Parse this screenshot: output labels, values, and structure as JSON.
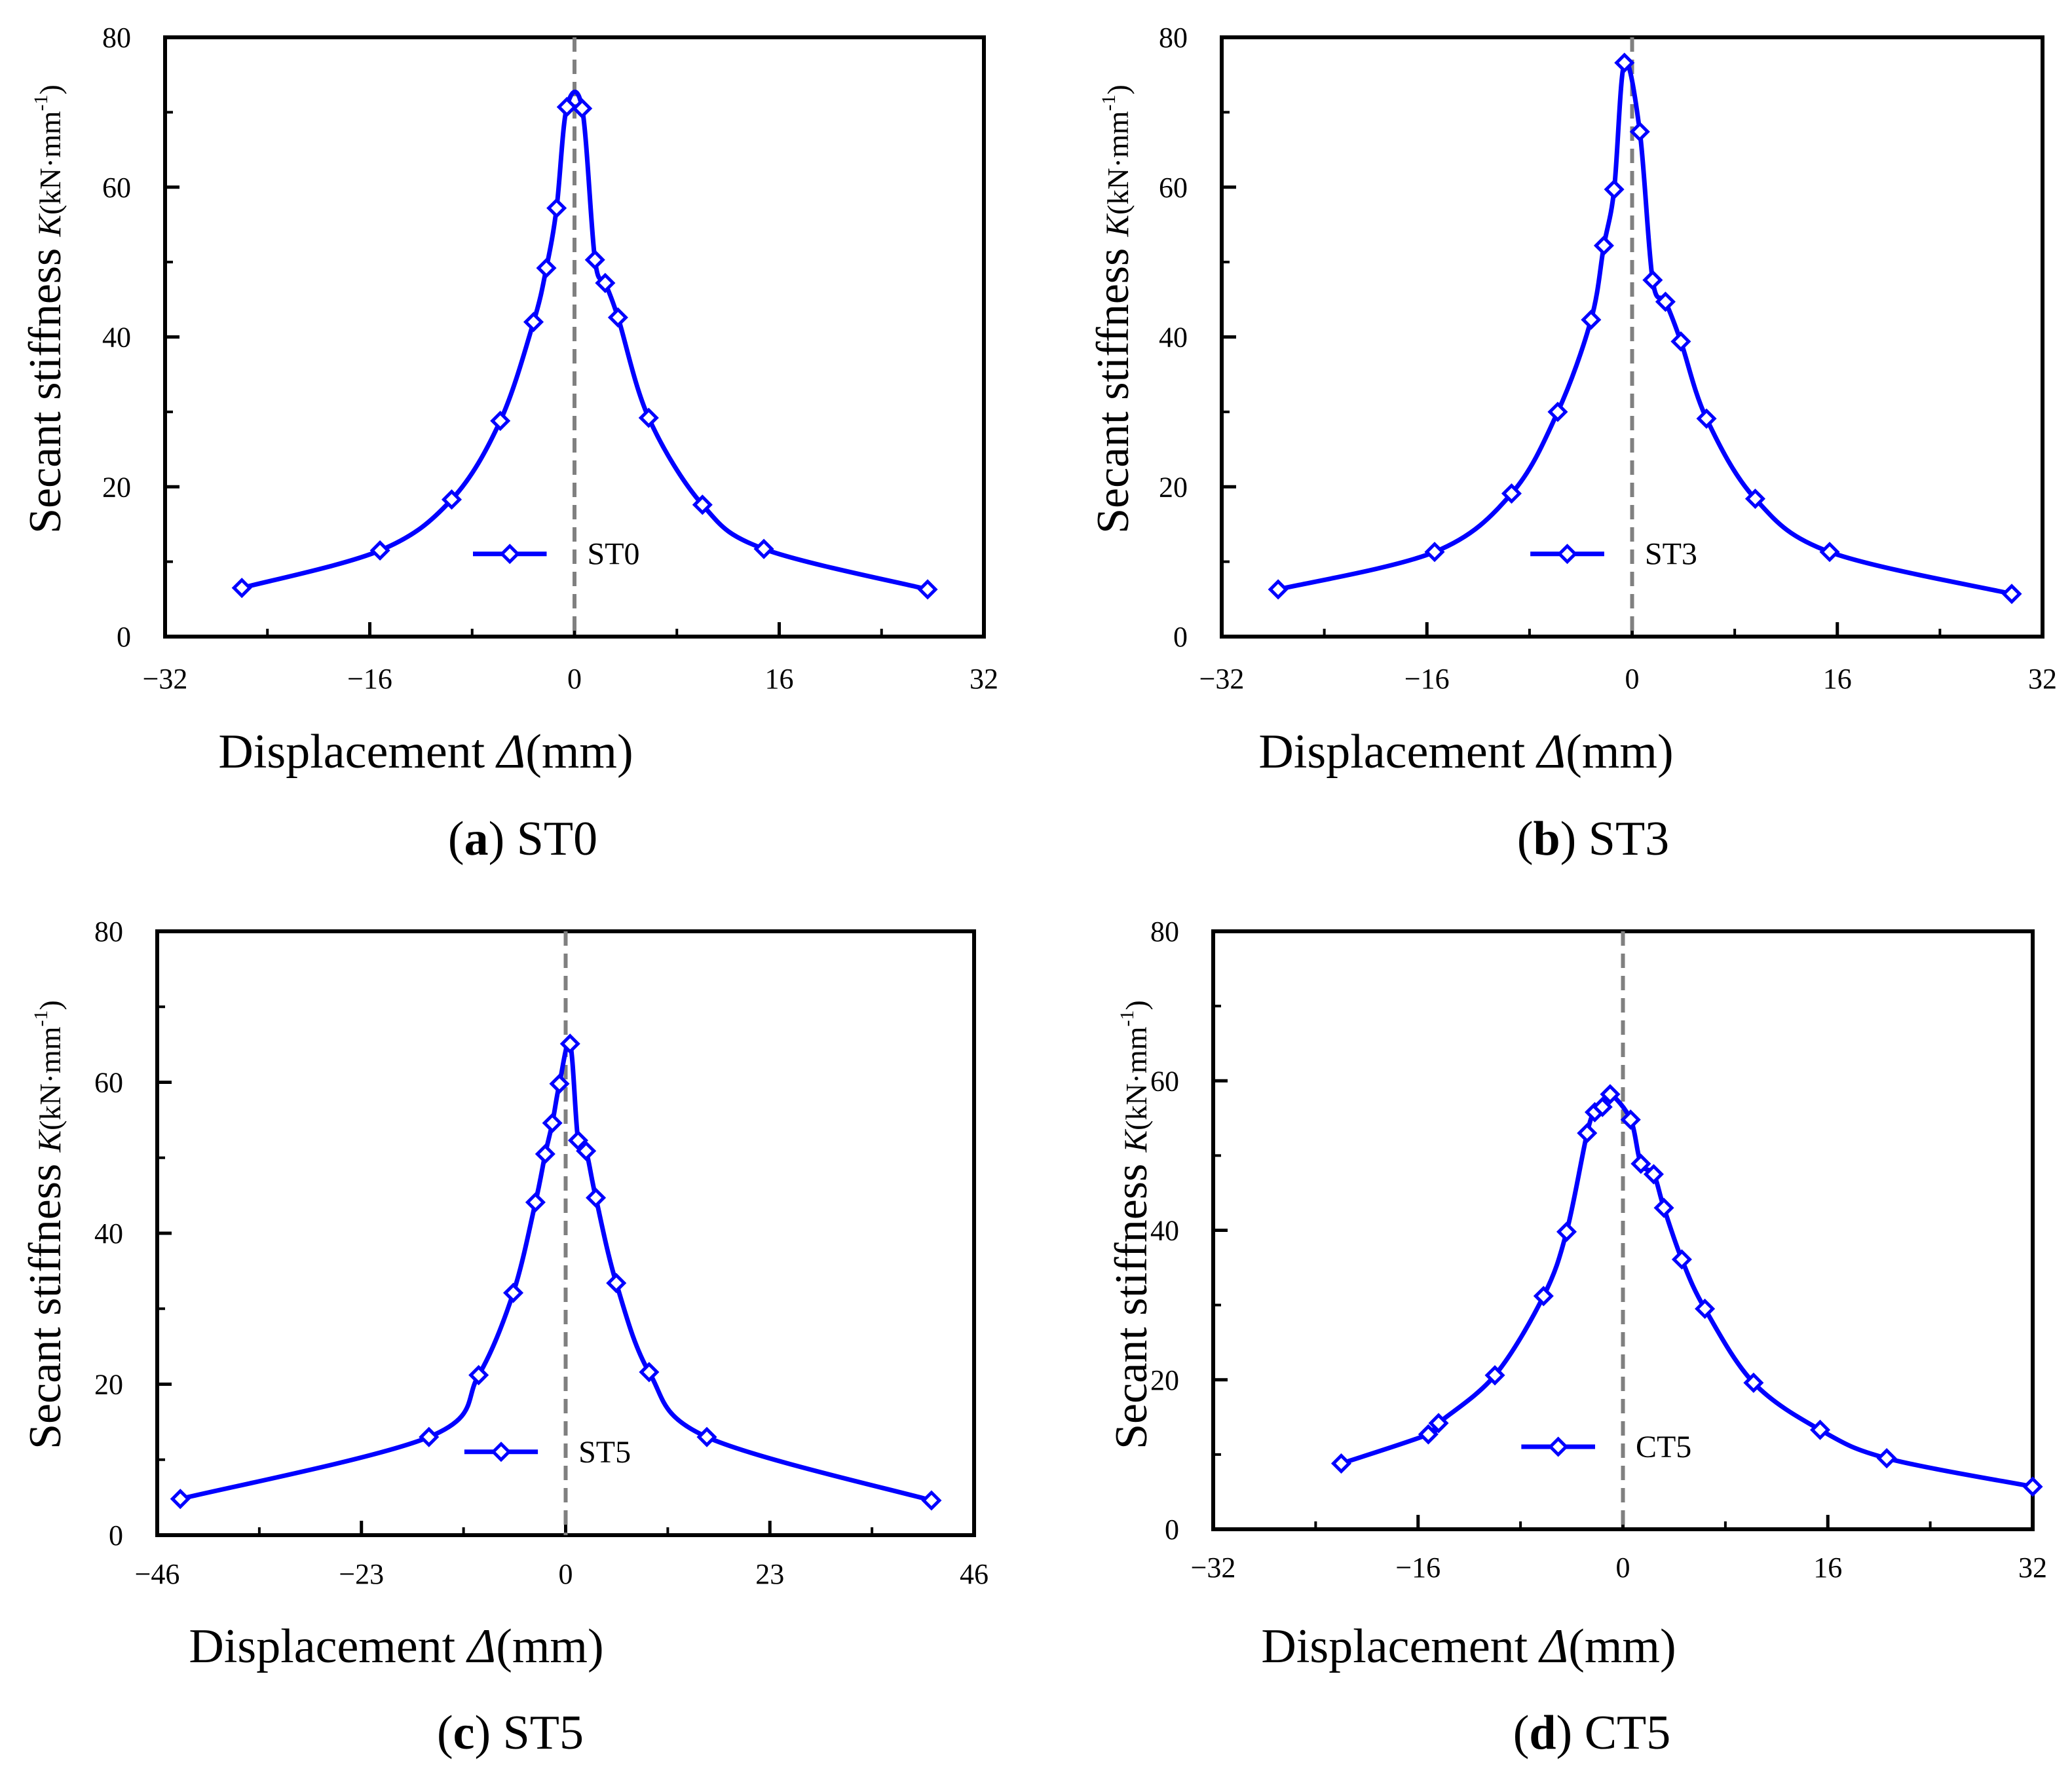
{
  "figure": {
    "panels": [
      {
        "caption": {
          "open": "(",
          "letter": "a",
          "rest": ") ST0"
        },
        "axis": {
          "x_title_main": "Displacement ",
          "x_title_var": "Δ",
          "x_title_unit": "(mm)",
          "y_title_main": "Secant stiffness ",
          "y_title_var": "K",
          "y_title_unit": "(kN·mm",
          "y_title_exp": "-1",
          "y_title_close": ")"
        }
      },
      {
        "caption": {
          "open": "(",
          "letter": "b",
          "rest": ") ST3"
        },
        "axis": {
          "x_title_main": "Displacement ",
          "x_title_var": "Δ",
          "x_title_unit": "(mm)",
          "y_title_main": "Secant stiffness ",
          "y_title_var": "K",
          "y_title_unit": "(kN·mm",
          "y_title_exp": "-1",
          "y_title_close": ")"
        }
      },
      {
        "caption": {
          "open": "(",
          "letter": "c",
          "rest": ") ST5"
        },
        "axis": {
          "x_title_main": "Displacement ",
          "x_title_var": "Δ",
          "x_title_unit": "(mm)",
          "y_title_main": "Secant stiffness ",
          "y_title_var": "K",
          "y_title_unit": "(kN·mm",
          "y_title_exp": "-1",
          "y_title_close": ")"
        }
      },
      {
        "caption": {
          "open": "(",
          "letter": "d",
          "rest": ") CT5"
        },
        "axis": {
          "x_title_main": "Displacement ",
          "x_title_var": "Δ",
          "x_title_unit": "(mm)",
          "y_title_main": "Secant stiffness ",
          "y_title_var": "K",
          "y_title_unit": "(kN·mm",
          "y_title_exp": "-1",
          "y_title_close": ")"
        }
      }
    ]
  },
  "chart_data": [
    {
      "type": "line",
      "title": "ST0",
      "xlabel": "Displacement Δ(mm)",
      "ylabel": "Secant stiffness K(kN·mm-1)",
      "xlim": [
        -32,
        32
      ],
      "ylim": [
        0,
        80
      ],
      "xticks": [
        -32,
        -16,
        0,
        16,
        32
      ],
      "xtick_labels": [
        "−32",
        "−16",
        "0",
        "16",
        "32"
      ],
      "yticks": [
        0,
        20,
        40,
        60,
        80
      ],
      "ytick_labels": [
        "0",
        "20",
        "40",
        "60",
        "80"
      ],
      "legend_position": "bottom-center",
      "reference_line_x": 0,
      "series": [
        {
          "name": "ST0",
          "color": "#0000ff",
          "marker": "diamond",
          "x": [
            -26.0,
            -15.2,
            -9.6,
            -5.8,
            -3.2,
            -2.2,
            -1.4,
            -0.6,
            0.6,
            1.6,
            2.4,
            3.4,
            5.8,
            10.0,
            14.8,
            27.6
          ],
          "y": [
            6.5,
            11.5,
            18.3,
            28.8,
            42.0,
            49.2,
            57.2,
            70.7,
            70.5,
            50.3,
            47.2,
            42.6,
            29.2,
            17.6,
            11.7,
            6.3
          ]
        }
      ]
    },
    {
      "type": "line",
      "title": "ST3",
      "xlabel": "Displacement Δ(mm)",
      "ylabel": "Secant stiffness K(kN·mm-1)",
      "xlim": [
        -32,
        32
      ],
      "ylim": [
        0,
        80
      ],
      "xticks": [
        -32,
        -16,
        0,
        16,
        32
      ],
      "xtick_labels": [
        "−32",
        "−16",
        "0",
        "16",
        "32"
      ],
      "yticks": [
        0,
        20,
        40,
        60,
        80
      ],
      "ytick_labels": [
        "0",
        "20",
        "40",
        "60",
        "80"
      ],
      "legend_position": "bottom-center",
      "reference_line_x": 0,
      "series": [
        {
          "name": "ST3",
          "color": "#0000ff",
          "marker": "diamond",
          "x": [
            -27.6,
            -15.4,
            -9.4,
            -5.8,
            -3.2,
            -2.2,
            -1.4,
            -0.6,
            0.6,
            1.6,
            2.6,
            3.8,
            5.8,
            9.6,
            15.4,
            29.6
          ],
          "y": [
            6.3,
            11.3,
            19.1,
            30.0,
            42.3,
            52.2,
            59.7,
            76.6,
            67.4,
            47.6,
            44.7,
            39.4,
            29.1,
            18.4,
            11.3,
            5.7
          ]
        }
      ]
    },
    {
      "type": "line",
      "title": "ST5",
      "xlabel": "Displacement Δ(mm)",
      "ylabel": "Secant stiffness K(kN·mm-1)",
      "xlim": [
        -46,
        46
      ],
      "ylim": [
        0,
        80
      ],
      "xticks": [
        -46,
        -23,
        0,
        23,
        46
      ],
      "xtick_labels": [
        "−46",
        "−23",
        "0",
        "23",
        "46"
      ],
      "yticks": [
        0,
        20,
        40,
        60,
        80
      ],
      "ytick_labels": [
        "0",
        "20",
        "40",
        "60",
        "80"
      ],
      "legend_position": "bottom-center",
      "reference_line_x": 0,
      "series": [
        {
          "name": "ST5",
          "color": "#0000ff",
          "marker": "diamond",
          "x": [
            -43.4,
            -15.4,
            -9.8,
            -5.9,
            -3.4,
            -2.3,
            -1.5,
            -0.7,
            0.5,
            1.4,
            2.3,
            3.4,
            5.7,
            9.4,
            15.9,
            41.2
          ],
          "y": [
            4.8,
            13.0,
            21.2,
            32.1,
            44.1,
            50.5,
            54.6,
            59.8,
            65.1,
            52.3,
            50.9,
            44.7,
            33.4,
            21.6,
            13.0,
            4.6
          ]
        }
      ]
    },
    {
      "type": "line",
      "title": "CT5",
      "xlabel": "Displacement Δ(mm)",
      "ylabel": "Secant stiffness K(kN·mm-1)",
      "xlim": [
        -32,
        32
      ],
      "ylim": [
        0,
        80
      ],
      "xticks": [
        -32,
        -16,
        0,
        16,
        32
      ],
      "xtick_labels": [
        "−32",
        "−16",
        "0",
        "16",
        "32"
      ],
      "yticks": [
        0,
        20,
        40,
        60,
        80
      ],
      "ytick_labels": [
        "0",
        "20",
        "40",
        "60",
        "80"
      ],
      "legend_position": "bottom-center",
      "reference_line_x": 0,
      "series": [
        {
          "name": "CT5",
          "color": "#0000ff",
          "marker": "diamond",
          "x": [
            -22.0,
            -15.2,
            -14.4,
            -10.0,
            -6.2,
            -4.4,
            -2.8,
            -2.2,
            -1.6,
            -1.0,
            0.6,
            1.4,
            2.4,
            3.2,
            4.6,
            6.4,
            10.2,
            15.4,
            20.6,
            32.0
          ],
          "y": [
            8.8,
            12.7,
            14.2,
            20.6,
            31.2,
            39.8,
            53.0,
            55.8,
            56.5,
            58.2,
            54.8,
            48.9,
            47.5,
            43.0,
            36.1,
            29.5,
            19.6,
            13.3,
            9.5,
            5.7
          ]
        }
      ]
    }
  ]
}
